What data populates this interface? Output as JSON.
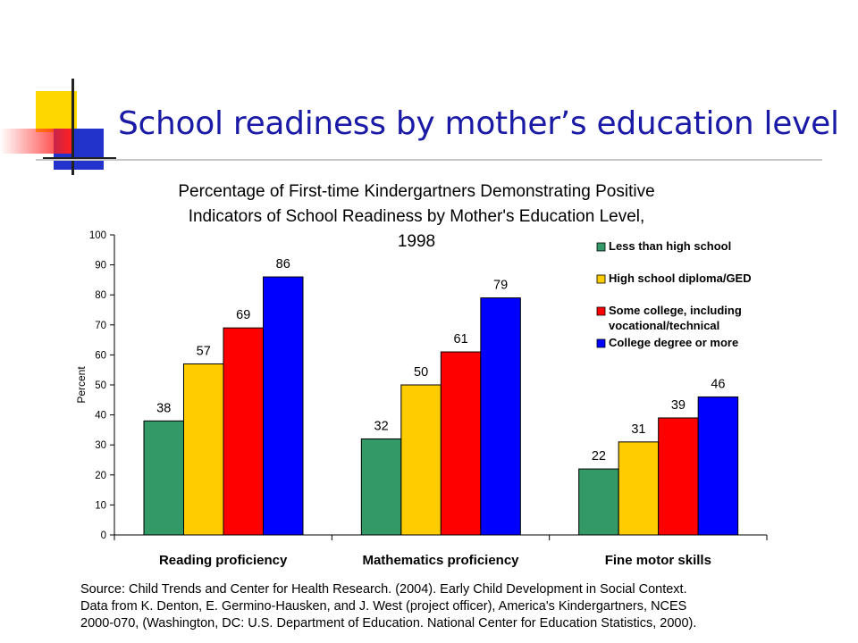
{
  "slide": {
    "title": "School readiness by mother’s education level",
    "accent_colors": {
      "yellow": "#FFD700",
      "blue": "#2233CC",
      "red": "#FF2020",
      "title": "#1A1AA6"
    }
  },
  "chart_data": {
    "type": "bar",
    "title": [
      "Percentage of First-time Kindergartners Demonstrating Positive",
      "Indicators of School Readiness by Mother's Education Level,",
      "1998"
    ],
    "xlabel": "",
    "ylabel": "Percent",
    "ylim": [
      0,
      100
    ],
    "yticks": [
      0,
      10,
      20,
      30,
      40,
      50,
      60,
      70,
      80,
      90,
      100
    ],
    "categories": [
      "Reading proficiency",
      "Mathematics proficiency",
      "Fine motor skills"
    ],
    "series": [
      {
        "name": "Less than high school",
        "color": "#339966",
        "values": [
          38,
          32,
          22
        ]
      },
      {
        "name": "High school diploma/GED",
        "color": "#FFCC00",
        "values": [
          57,
          50,
          31
        ]
      },
      {
        "name": "Some college, including vocational/technical",
        "color": "#FF0000",
        "values": [
          69,
          61,
          39
        ]
      },
      {
        "name": "College degree or more",
        "color": "#0000FF",
        "values": [
          86,
          79,
          46
        ]
      }
    ],
    "legend": {
      "position": "top-right",
      "entries": [
        [
          "Less than high school"
        ],
        [
          "High school diploma/GED"
        ],
        [
          "Some college, including",
          "vocational/technical"
        ],
        [
          "College degree or more"
        ]
      ]
    },
    "grid": false
  },
  "source": {
    "lines": [
      "Source: Child Trends and Center for Health Research. (2004). Early Child Development in Social Context.",
      "Data from K. Denton, E. Germino-Hausken, and J. West (project officer), America's Kindergartners, NCES",
      "2000-070, (Washington, DC: U.S. Department of Education. National Center for Education Statistics, 2000)."
    ]
  }
}
